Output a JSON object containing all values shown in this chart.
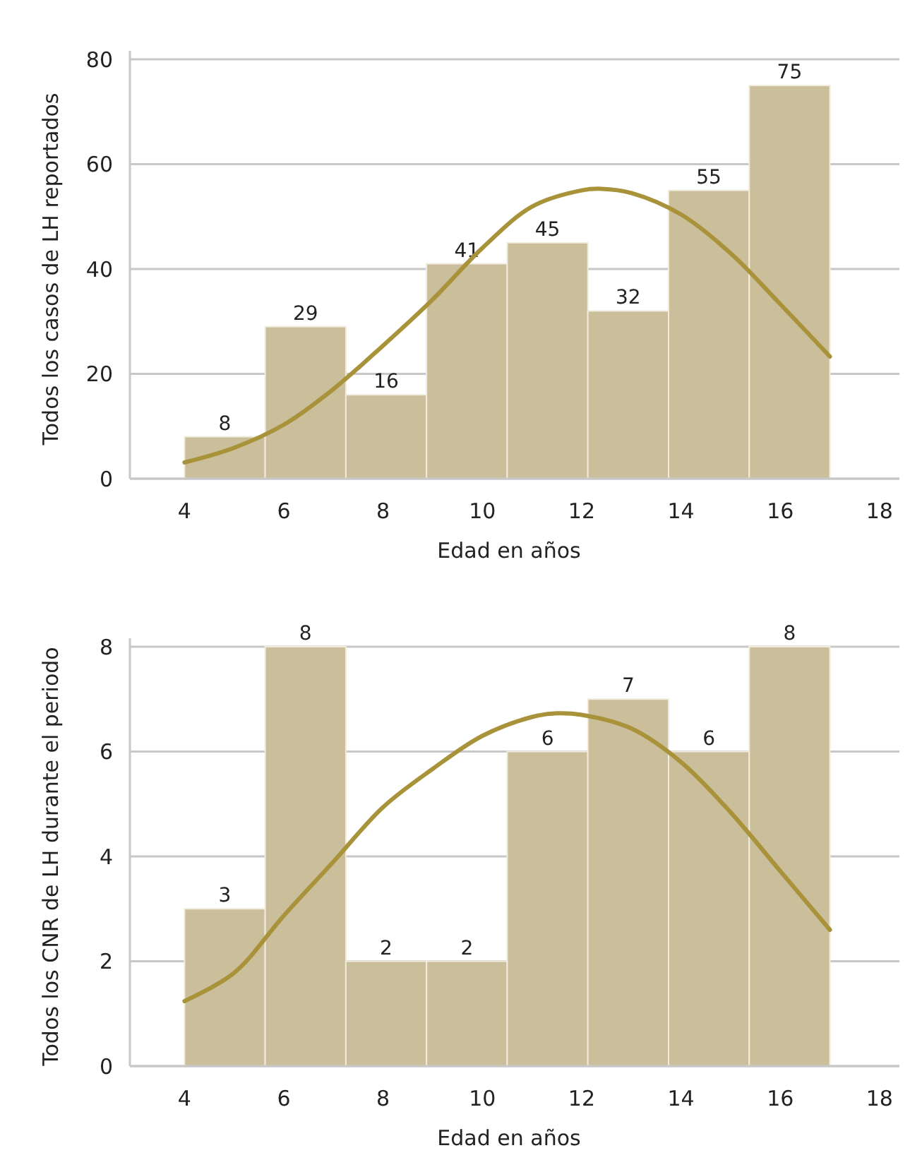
{
  "chart_data": [
    {
      "type": "histogram",
      "bins": [
        4,
        5.625,
        7.25,
        8.875,
        10.5,
        12.125,
        13.75,
        15.375,
        17
      ],
      "values": [
        8,
        29,
        16,
        41,
        45,
        32,
        55,
        75
      ],
      "color": "#cbbe9b",
      "value_labels": [
        "8",
        "29",
        "16",
        "41",
        "45",
        "32",
        "55",
        "75"
      ],
      "xlabel": "Edad en años",
      "ylabel": "Todos los casos de LH reportados",
      "xlim": [
        2.9,
        18.4
      ],
      "xticks": [
        4,
        6,
        8,
        10,
        12,
        14,
        16,
        18
      ],
      "ylim": [
        0,
        80
      ],
      "yticks": [
        0,
        20,
        40,
        60,
        80
      ],
      "grid": "y",
      "series": [
        {
          "type": "line",
          "color": "#a8933a",
          "x": [
            4,
            5,
            6,
            7,
            8,
            9,
            10,
            11,
            12,
            12.4,
            13,
            14,
            15,
            16,
            17
          ],
          "values": [
            3.1,
            5.9,
            10.3,
            17.1,
            25.4,
            34.2,
            44,
            51.9,
            55,
            55.3,
            54.5,
            50.4,
            43,
            33.3,
            23.3
          ]
        }
      ]
    },
    {
      "type": "histogram",
      "bins": [
        4,
        5.625,
        7.25,
        8.875,
        10.5,
        12.125,
        13.75,
        15.375,
        17
      ],
      "values": [
        3,
        8,
        2,
        2,
        6,
        7,
        6,
        8
      ],
      "color": "#cbbe9b",
      "value_labels": [
        "3",
        "8",
        "2",
        "2",
        "6",
        "7",
        "6",
        "8"
      ],
      "xlabel": "Edad en años",
      "ylabel": "Todos los CNR de LH durante el periodo",
      "xlim": [
        2.9,
        18.4
      ],
      "xticks": [
        4,
        6,
        8,
        10,
        12,
        14,
        16,
        18
      ],
      "ylim": [
        0,
        8
      ],
      "yticks": [
        0,
        2,
        4,
        6,
        8
      ],
      "grid": "y",
      "series": [
        {
          "type": "line",
          "color": "#a8933a",
          "x": [
            4,
            5,
            6,
            7,
            8,
            9,
            10,
            11,
            11.5,
            12,
            13,
            14,
            15,
            16,
            17
          ],
          "values": [
            1.24,
            1.78,
            2.87,
            3.9,
            4.94,
            5.67,
            6.3,
            6.66,
            6.73,
            6.7,
            6.44,
            5.8,
            4.84,
            3.72,
            2.6
          ]
        }
      ]
    }
  ]
}
